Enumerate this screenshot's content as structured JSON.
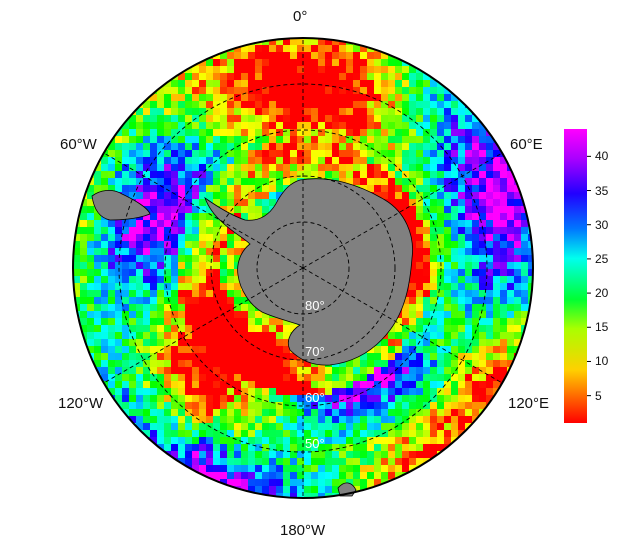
{
  "map": {
    "projection": "south-polar-stereographic",
    "land_color": "#808080",
    "background_color": "#ffffff",
    "grid_line_color": "#000000",
    "lat_label_color": "#ffffff",
    "longitude_labels": {
      "top": "0°",
      "top_left": "60°W",
      "top_right": "60°E",
      "bottom_left": "120°W",
      "bottom_right": "120°E",
      "bottom": "180°W"
    },
    "latitude_labels": [
      "80°",
      "70°",
      "60°",
      "50°"
    ],
    "latitude_circles": [
      80,
      70,
      60,
      50
    ],
    "outer_boundary_latitude": 40
  },
  "colorbar": {
    "min": 1,
    "max": 44,
    "ticks": [
      "5",
      "10",
      "15",
      "20",
      "25",
      "30",
      "35",
      "40"
    ],
    "tick_values": [
      5,
      10,
      15,
      20,
      25,
      30,
      35,
      40
    ],
    "colormap": "hsv-reversed (red low → magenta high)"
  }
}
